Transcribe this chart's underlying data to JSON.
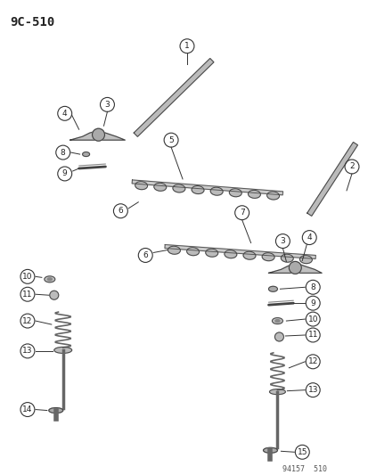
{
  "title": "9C-510",
  "footer": "94157  510",
  "bg_color": "#ffffff",
  "line_color": "#333333",
  "text_color": "#222222",
  "figsize": [
    4.14,
    5.33
  ],
  "dpi": 100
}
